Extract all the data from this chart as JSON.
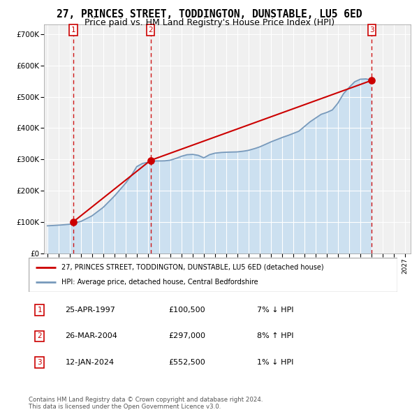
{
  "title": "27, PRINCES STREET, TODDINGTON, DUNSTABLE, LU5 6ED",
  "subtitle": "Price paid vs. HM Land Registry's House Price Index (HPI)",
  "ylabel_ticks": [
    "£0",
    "£100K",
    "£200K",
    "£300K",
    "£400K",
    "£500K",
    "£600K",
    "£700K"
  ],
  "ytick_values": [
    0,
    100000,
    200000,
    300000,
    400000,
    500000,
    600000,
    700000
  ],
  "ylim": [
    0,
    730000
  ],
  "xlim_start": 1994.7,
  "xlim_end": 2027.5,
  "xticks": [
    1995,
    1996,
    1997,
    1998,
    1999,
    2000,
    2001,
    2002,
    2003,
    2004,
    2005,
    2006,
    2007,
    2008,
    2009,
    2010,
    2011,
    2012,
    2013,
    2014,
    2015,
    2016,
    2017,
    2018,
    2019,
    2020,
    2021,
    2022,
    2023,
    2024,
    2025,
    2026,
    2027
  ],
  "background_color": "#ffffff",
  "plot_bg_color": "#f0f0f0",
  "hpi_line_color": "#7799bb",
  "price_line_color": "#cc0000",
  "sale_dot_color": "#cc0000",
  "vline_color": "#cc0000",
  "shade_color": "#cce0f0",
  "sale_points": [
    {
      "year": 1997.31,
      "price": 100500,
      "label": "1"
    },
    {
      "year": 2004.23,
      "price": 297000,
      "label": "2"
    },
    {
      "year": 2024.03,
      "price": 552500,
      "label": "3"
    }
  ],
  "legend_entries": [
    "27, PRINCES STREET, TODDINGTON, DUNSTABLE, LU5 6ED (detached house)",
    "HPI: Average price, detached house, Central Bedfordshire"
  ],
  "table_rows": [
    {
      "num": "1",
      "date": "25-APR-1997",
      "price": "£100,500",
      "hpi": "7% ↓ HPI"
    },
    {
      "num": "2",
      "date": "26-MAR-2004",
      "price": "£297,000",
      "hpi": "8% ↑ HPI"
    },
    {
      "num": "3",
      "date": "12-JAN-2024",
      "price": "£552,500",
      "hpi": "1% ↓ HPI"
    }
  ],
  "footer": "Contains HM Land Registry data © Crown copyright and database right 2024.\nThis data is licensed under the Open Government Licence v3.0.",
  "title_fontsize": 10.5,
  "subtitle_fontsize": 9.0
}
